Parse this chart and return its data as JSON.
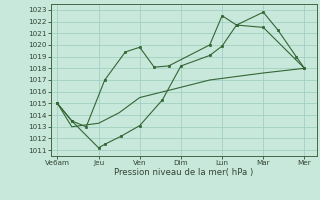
{
  "xlabel": "Pression niveau de la mer( hPa )",
  "bg_color": "#c8e8dc",
  "grid_color": "#99ccbb",
  "line_color": "#336633",
  "xtick_labels": [
    "Ve6am",
    "Jeu",
    "Ven",
    "Dim",
    "Lun",
    "Mar",
    "Mer"
  ],
  "x_positions": [
    0,
    1,
    2,
    3,
    4,
    5,
    6
  ],
  "ylim": [
    1010.5,
    1023.5
  ],
  "yticks": [
    1011,
    1012,
    1013,
    1014,
    1015,
    1016,
    1017,
    1018,
    1019,
    1020,
    1021,
    1022,
    1023
  ],
  "line1_x": [
    0,
    0.35,
    0.7,
    1.15,
    1.65,
    2.0,
    2.35,
    2.7,
    3.7,
    4.0,
    4.35,
    5.0,
    5.35,
    5.8,
    6.0
  ],
  "line1_y": [
    1015,
    1013.5,
    1013,
    1017,
    1019.4,
    1019.8,
    1018.1,
    1018.2,
    1020.0,
    1022.5,
    1021.7,
    1022.8,
    1021.3,
    1019.0,
    1018.0
  ],
  "line2_x": [
    0,
    0.35,
    1.0,
    1.15,
    1.55,
    2.0,
    2.55,
    3.0,
    3.7,
    4.0,
    4.35,
    5.0,
    6.0
  ],
  "line2_y": [
    1015,
    1013.5,
    1011.2,
    1011.5,
    1012.2,
    1013.1,
    1015.3,
    1018.2,
    1019.1,
    1019.9,
    1021.7,
    1021.5,
    1018.0
  ],
  "line3_x": [
    0,
    0.35,
    1.0,
    1.5,
    2.0,
    2.8,
    3.7,
    5.0,
    6.0
  ],
  "line3_y": [
    1015,
    1013.0,
    1013.3,
    1014.2,
    1015.5,
    1016.2,
    1017.0,
    1017.6,
    1018.0
  ]
}
